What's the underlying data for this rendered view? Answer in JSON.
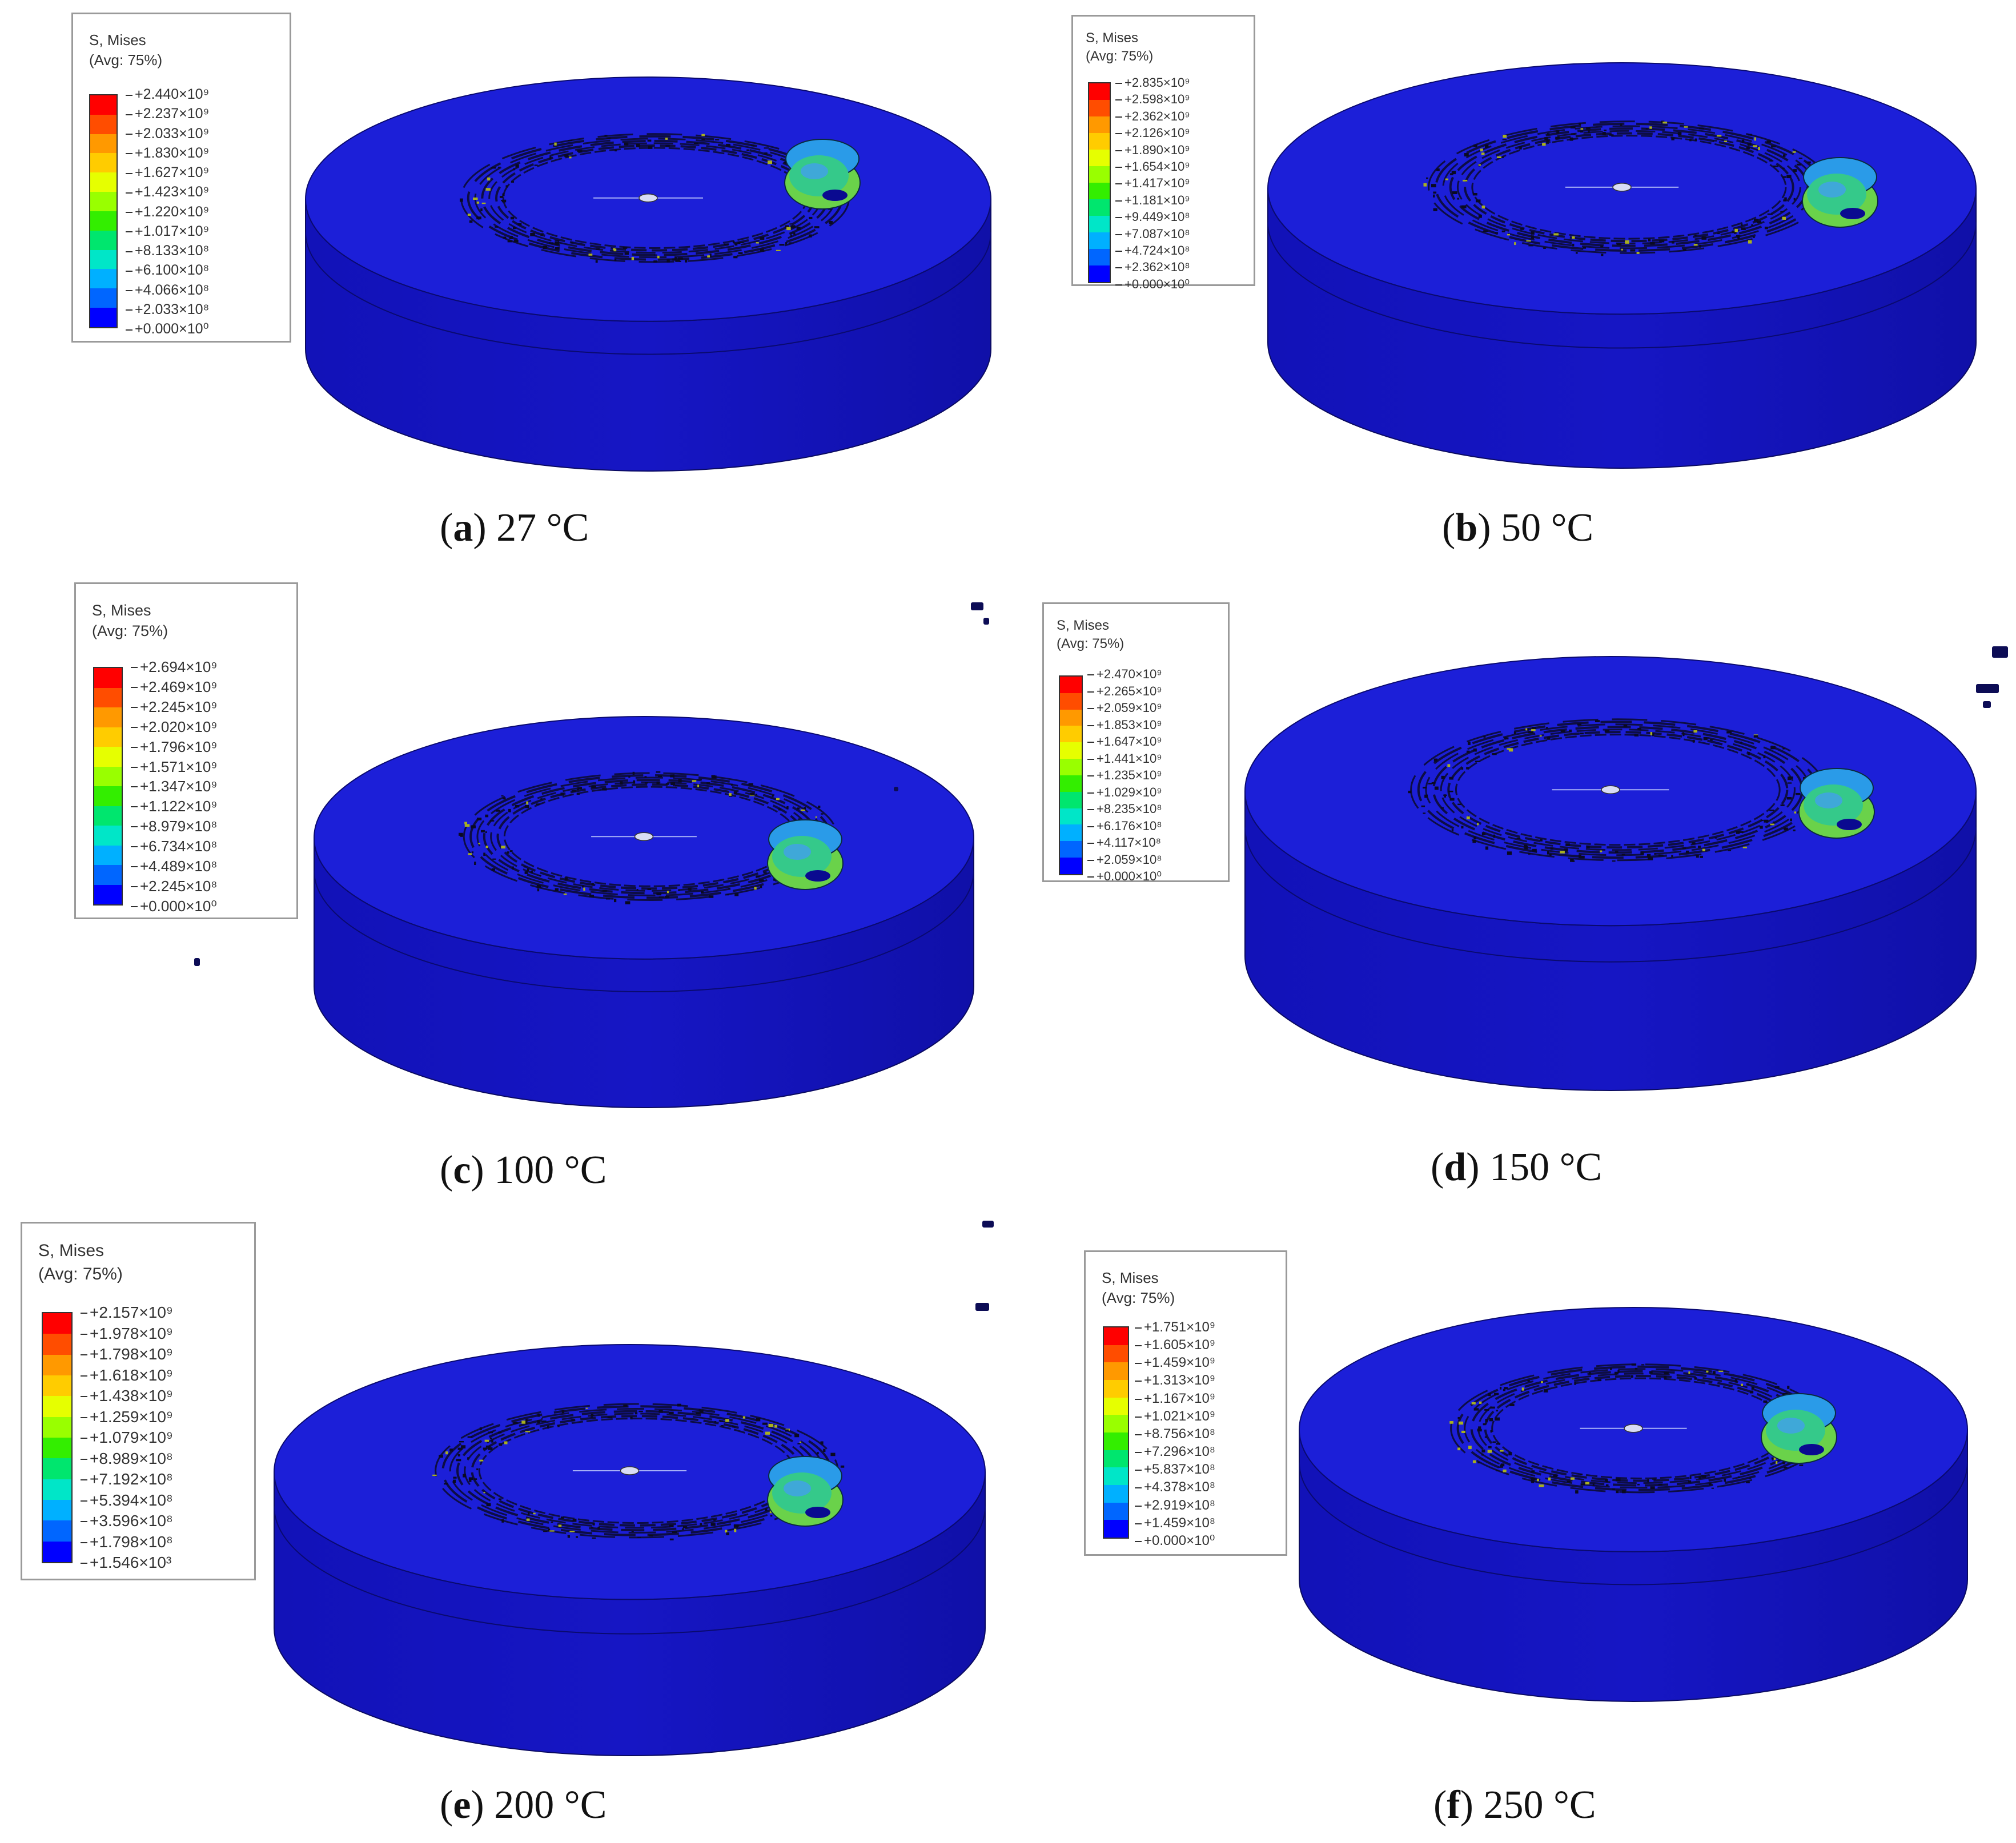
{
  "legend_title": "S, Mises",
  "legend_subtitle": "(Avg: 75%)",
  "colors": {
    "scale": [
      "#ff0000",
      "#ff4d00",
      "#ff9900",
      "#ffcc00",
      "#e6ff00",
      "#99ff00",
      "#33ee00",
      "#00e66e",
      "#00e6c8",
      "#00b0ff",
      "#0066ff",
      "#0000ff"
    ],
    "disk_top": "#1c1fd8",
    "disk_side": "#1616c4",
    "ball": "#35c98a"
  },
  "panels": [
    {
      "letter": "a",
      "temp": "27 °C",
      "labels": [
        "+2.440×10⁹",
        "+2.237×10⁹",
        "+2.033×10⁹",
        "+1.830×10⁹",
        "+1.627×10⁹",
        "+1.423×10⁹",
        "+1.220×10⁹",
        "+1.017×10⁹",
        "+8.133×10⁸",
        "+6.100×10⁸",
        "+4.066×10⁸",
        "+2.033×10⁸",
        "+0.000×10⁰"
      ]
    },
    {
      "letter": "b",
      "temp": "50 °C",
      "labels": [
        "+2.835×10⁹",
        "+2.598×10⁹",
        "+2.362×10⁹",
        "+2.126×10⁹",
        "+1.890×10⁹",
        "+1.654×10⁹",
        "+1.417×10⁹",
        "+1.181×10⁹",
        "+9.449×10⁸",
        "+7.087×10⁸",
        "+4.724×10⁸",
        "+2.362×10⁸",
        "+0.000×10⁰"
      ]
    },
    {
      "letter": "c",
      "temp": "100 °C",
      "labels": [
        "+2.694×10⁹",
        "+2.469×10⁹",
        "+2.245×10⁹",
        "+2.020×10⁹",
        "+1.796×10⁹",
        "+1.571×10⁹",
        "+1.347×10⁹",
        "+1.122×10⁹",
        "+8.979×10⁸",
        "+6.734×10⁸",
        "+4.489×10⁸",
        "+2.245×10⁸",
        "+0.000×10⁰"
      ]
    },
    {
      "letter": "d",
      "temp": "150 °C",
      "labels": [
        "+2.470×10⁹",
        "+2.265×10⁹",
        "+2.059×10⁹",
        "+1.853×10⁹",
        "+1.647×10⁹",
        "+1.441×10⁹",
        "+1.235×10⁹",
        "+1.029×10⁹",
        "+8.235×10⁸",
        "+6.176×10⁸",
        "+4.117×10⁸",
        "+2.059×10⁸",
        "+0.000×10⁰"
      ]
    },
    {
      "letter": "e",
      "temp": "200 °C",
      "labels": [
        "+2.157×10⁹",
        "+1.978×10⁹",
        "+1.798×10⁹",
        "+1.618×10⁹",
        "+1.438×10⁹",
        "+1.259×10⁹",
        "+1.079×10⁹",
        "+8.989×10⁸",
        "+7.192×10⁸",
        "+5.394×10⁸",
        "+3.596×10⁸",
        "+1.798×10⁸",
        "+1.546×10³"
      ]
    },
    {
      "letter": "f",
      "temp": "250 °C",
      "labels": [
        "+1.751×10⁹",
        "+1.605×10⁹",
        "+1.459×10⁹",
        "+1.313×10⁹",
        "+1.167×10⁹",
        "+1.021×10⁹",
        "+8.756×10⁸",
        "+7.296×10⁸",
        "+5.837×10⁸",
        "+4.378×10⁸",
        "+2.919×10⁸",
        "+1.459×10⁸",
        "+0.000×10⁰"
      ]
    }
  ]
}
